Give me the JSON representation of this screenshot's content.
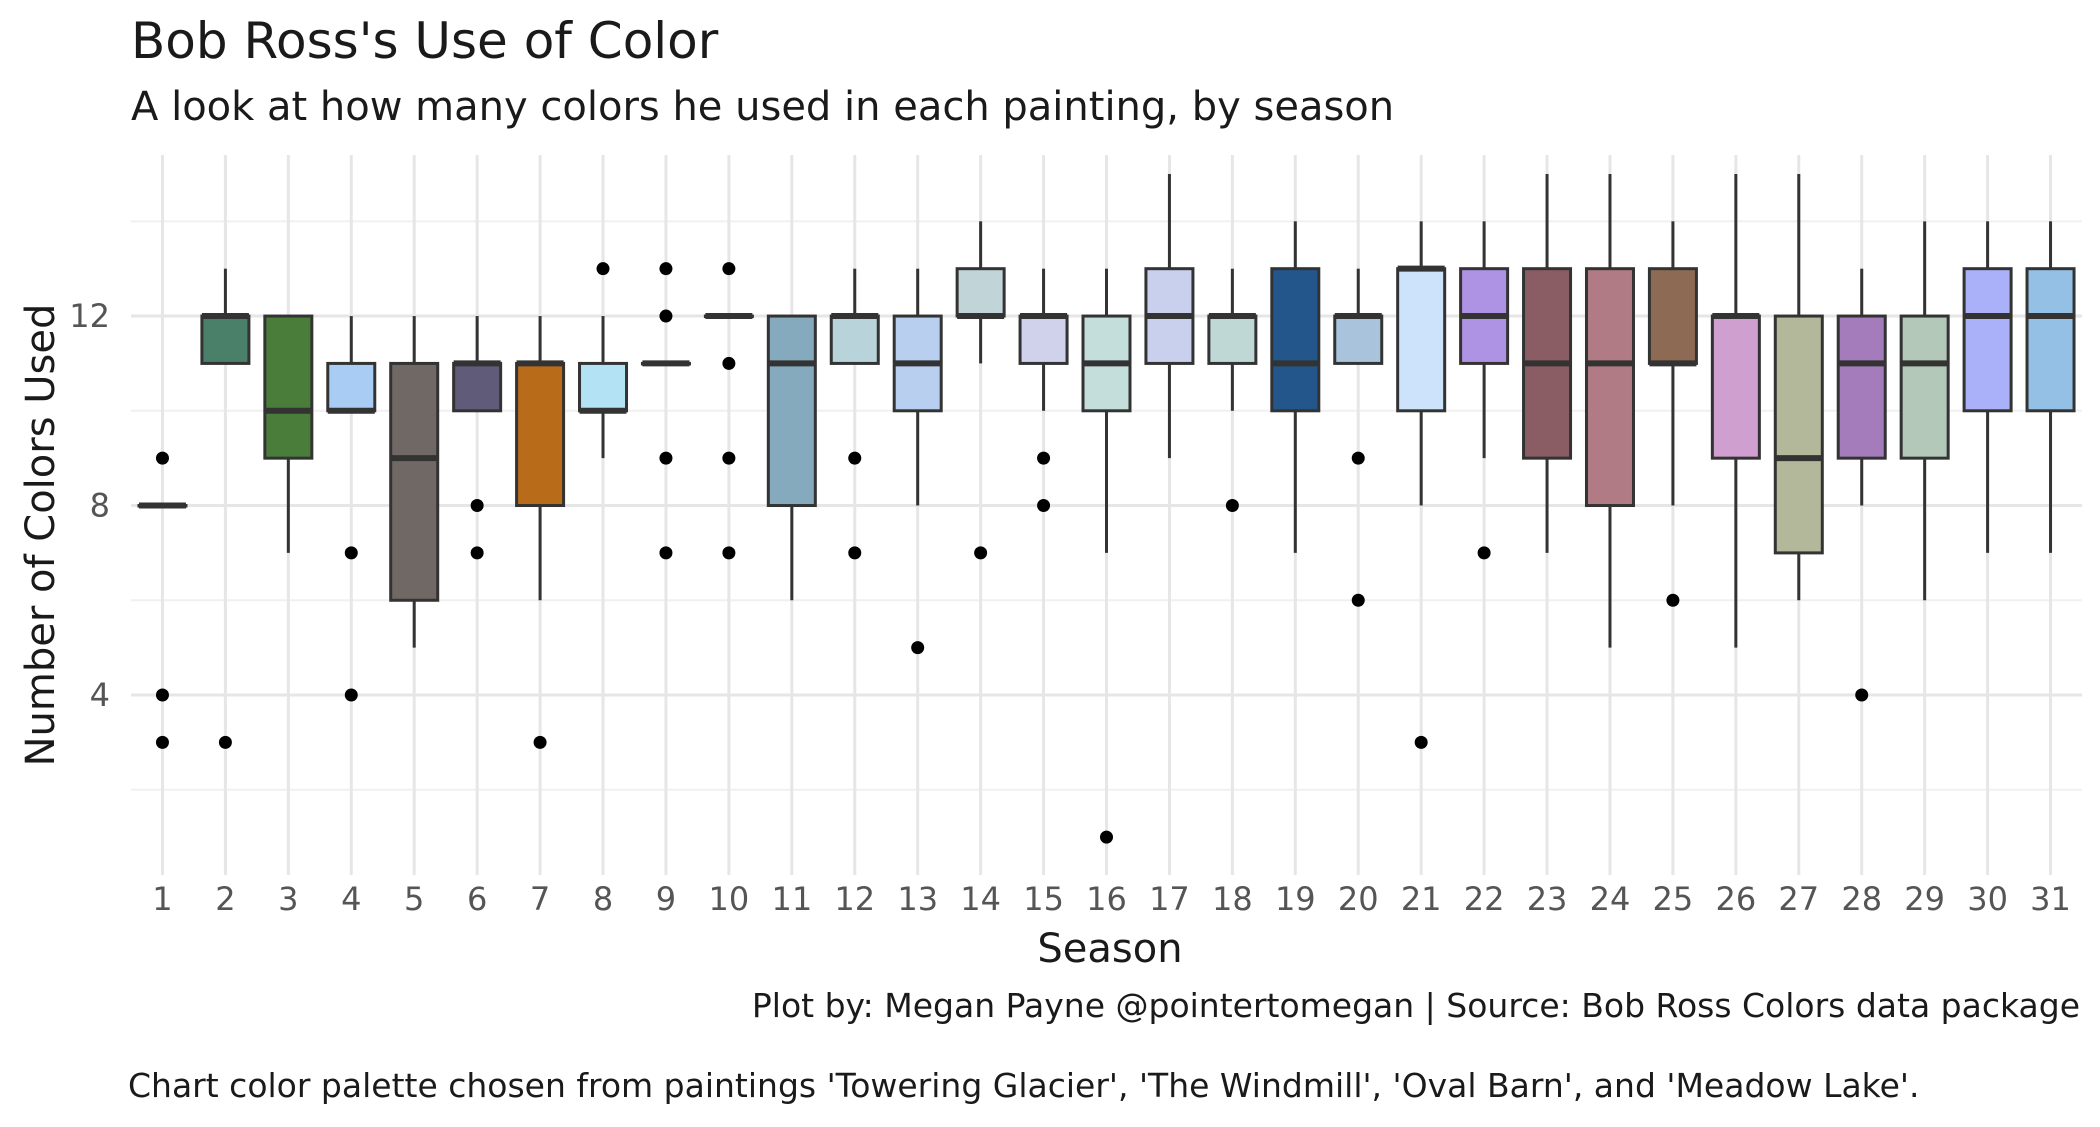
{
  "chart_data": {
    "type": "boxplot",
    "title": "Bob Ross's Use of Color",
    "subtitle": "A look at how many colors he used in each painting, by season",
    "xlabel": "Season",
    "ylabel": "Number of Colors Used",
    "caption_lines": [
      "Plot by: Megan Payne @pointertomegan | Source: Bob Ross Colors data package",
      "Chart color palette chosen from paintings 'Towering Glacier', 'The Windmill', 'Oval Barn', and 'Meadow Lake'."
    ],
    "ylim": [
      0.2,
      15.4
    ],
    "y_ticks": [
      4,
      8,
      12
    ],
    "grid": true,
    "legend": "none",
    "categories": [
      "1",
      "2",
      "3",
      "4",
      "5",
      "6",
      "7",
      "8",
      "9",
      "10",
      "11",
      "12",
      "13",
      "14",
      "15",
      "16",
      "17",
      "18",
      "19",
      "20",
      "21",
      "22",
      "23",
      "24",
      "25",
      "26",
      "27",
      "28",
      "29",
      "30",
      "31"
    ],
    "boxes": [
      {
        "season": "1",
        "lower_whisker": 8,
        "q1": 8,
        "median": 8,
        "q3": 8,
        "upper_whisker": 8,
        "outliers": [
          3,
          4,
          9
        ],
        "fill": "#5b6380"
      },
      {
        "season": "2",
        "lower_whisker": 11,
        "q1": 11,
        "median": 12,
        "q3": 12,
        "upper_whisker": 13,
        "outliers": [
          3
        ],
        "fill": "#4a7f6a"
      },
      {
        "season": "3",
        "lower_whisker": 7,
        "q1": 9,
        "median": 10,
        "q3": 12,
        "upper_whisker": 12,
        "outliers": [],
        "fill": "#4a7d3a"
      },
      {
        "season": "4",
        "lower_whisker": 10,
        "q1": 10,
        "median": 10,
        "q3": 11,
        "upper_whisker": 12,
        "outliers": [
          4,
          7
        ],
        "fill": "#a9ccf5"
      },
      {
        "season": "5",
        "lower_whisker": 5,
        "q1": 6,
        "median": 9,
        "q3": 11,
        "upper_whisker": 12,
        "outliers": [],
        "fill": "#706864"
      },
      {
        "season": "6",
        "lower_whisker": 10,
        "q1": 10,
        "median": 11,
        "q3": 11,
        "upper_whisker": 12,
        "outliers": [
          7,
          8
        ],
        "fill": "#5f5b78"
      },
      {
        "season": "7",
        "lower_whisker": 6,
        "q1": 8,
        "median": 11,
        "q3": 11,
        "upper_whisker": 12,
        "outliers": [
          3
        ],
        "fill": "#b86c1a"
      },
      {
        "season": "8",
        "lower_whisker": 9,
        "q1": 10,
        "median": 10,
        "q3": 11,
        "upper_whisker": 12,
        "outliers": [
          13
        ],
        "fill": "#b2e2f4"
      },
      {
        "season": "9",
        "lower_whisker": 11,
        "q1": 11,
        "median": 11,
        "q3": 11,
        "upper_whisker": 11,
        "outliers": [
          7,
          9,
          12,
          13
        ],
        "fill": "#a4c0d8"
      },
      {
        "season": "10",
        "lower_whisker": 12,
        "q1": 12,
        "median": 12,
        "q3": 12,
        "upper_whisker": 12,
        "outliers": [
          7,
          9,
          11,
          13
        ],
        "fill": "#8eb0c4"
      },
      {
        "season": "11",
        "lower_whisker": 6,
        "q1": 8,
        "median": 11,
        "q3": 12,
        "upper_whisker": 12,
        "outliers": [],
        "fill": "#85aabd"
      },
      {
        "season": "12",
        "lower_whisker": 11,
        "q1": 11,
        "median": 12,
        "q3": 12,
        "upper_whisker": 13,
        "outliers": [
          7,
          9
        ],
        "fill": "#b8d3d9"
      },
      {
        "season": "13",
        "lower_whisker": 8,
        "q1": 10,
        "median": 11,
        "q3": 12,
        "upper_whisker": 13,
        "outliers": [
          5
        ],
        "fill": "#b8cff0"
      },
      {
        "season": "14",
        "lower_whisker": 11,
        "q1": 12,
        "median": 12,
        "q3": 13,
        "upper_whisker": 14,
        "outliers": [
          7
        ],
        "fill": "#c1d4d8"
      },
      {
        "season": "15",
        "lower_whisker": 10,
        "q1": 11,
        "median": 12,
        "q3": 12,
        "upper_whisker": 13,
        "outliers": [
          8,
          9
        ],
        "fill": "#cfd2ea"
      },
      {
        "season": "16",
        "lower_whisker": 7,
        "q1": 10,
        "median": 11,
        "q3": 12,
        "upper_whisker": 13,
        "outliers": [
          1
        ],
        "fill": "#c4dedb"
      },
      {
        "season": "17",
        "lower_whisker": 9,
        "q1": 11,
        "median": 12,
        "q3": 13,
        "upper_whisker": 15,
        "outliers": [],
        "fill": "#c8d0ee"
      },
      {
        "season": "18",
        "lower_whisker": 10,
        "q1": 11,
        "median": 12,
        "q3": 12,
        "upper_whisker": 13,
        "outliers": [
          8
        ],
        "fill": "#bfd8d6"
      },
      {
        "season": "19",
        "lower_whisker": 7,
        "q1": 10,
        "median": 11,
        "q3": 13,
        "upper_whisker": 14,
        "outliers": [],
        "fill": "#23578c"
      },
      {
        "season": "20",
        "lower_whisker": 11,
        "q1": 11,
        "median": 12,
        "q3": 12,
        "upper_whisker": 13,
        "outliers": [
          6,
          9
        ],
        "fill": "#a9c3dc"
      },
      {
        "season": "21",
        "lower_whisker": 8,
        "q1": 10,
        "median": 13,
        "q3": 13,
        "upper_whisker": 14,
        "outliers": [
          3
        ],
        "fill": "#cce3fb"
      },
      {
        "season": "22",
        "lower_whisker": 9,
        "q1": 11,
        "median": 12,
        "q3": 13,
        "upper_whisker": 14,
        "outliers": [
          7
        ],
        "fill": "#ae93e4"
      },
      {
        "season": "23",
        "lower_whisker": 7,
        "q1": 9,
        "median": 11,
        "q3": 13,
        "upper_whisker": 15,
        "outliers": [],
        "fill": "#8a5c63"
      },
      {
        "season": "24",
        "lower_whisker": 5,
        "q1": 8,
        "median": 11,
        "q3": 13,
        "upper_whisker": 15,
        "outliers": [],
        "fill": "#b07b84"
      },
      {
        "season": "25",
        "lower_whisker": 8,
        "q1": 11,
        "median": 11,
        "q3": 13,
        "upper_whisker": 14,
        "outliers": [
          6
        ],
        "fill": "#8d6a53"
      },
      {
        "season": "26",
        "lower_whisker": 5,
        "q1": 9,
        "median": 12,
        "q3": 12,
        "upper_whisker": 15,
        "outliers": [],
        "fill": "#cf9fcf"
      },
      {
        "season": "27",
        "lower_whisker": 6,
        "q1": 7,
        "median": 9,
        "q3": 12,
        "upper_whisker": 15,
        "outliers": [],
        "fill": "#b3b89a"
      },
      {
        "season": "28",
        "lower_whisker": 8,
        "q1": 9,
        "median": 11,
        "q3": 12,
        "upper_whisker": 13,
        "outliers": [
          4
        ],
        "fill": "#a57cbb"
      },
      {
        "season": "29",
        "lower_whisker": 6,
        "q1": 9,
        "median": 11,
        "q3": 12,
        "upper_whisker": 14,
        "outliers": [],
        "fill": "#b3c8b9"
      },
      {
        "season": "30",
        "lower_whisker": 7,
        "q1": 10,
        "median": 12,
        "q3": 13,
        "upper_whisker": 14,
        "outliers": [],
        "fill": "#aab1f8"
      },
      {
        "season": "31",
        "lower_whisker": 7,
        "q1": 10,
        "median": 12,
        "q3": 13,
        "upper_whisker": 14,
        "outliers": [],
        "fill": "#94c0e6"
      }
    ]
  }
}
